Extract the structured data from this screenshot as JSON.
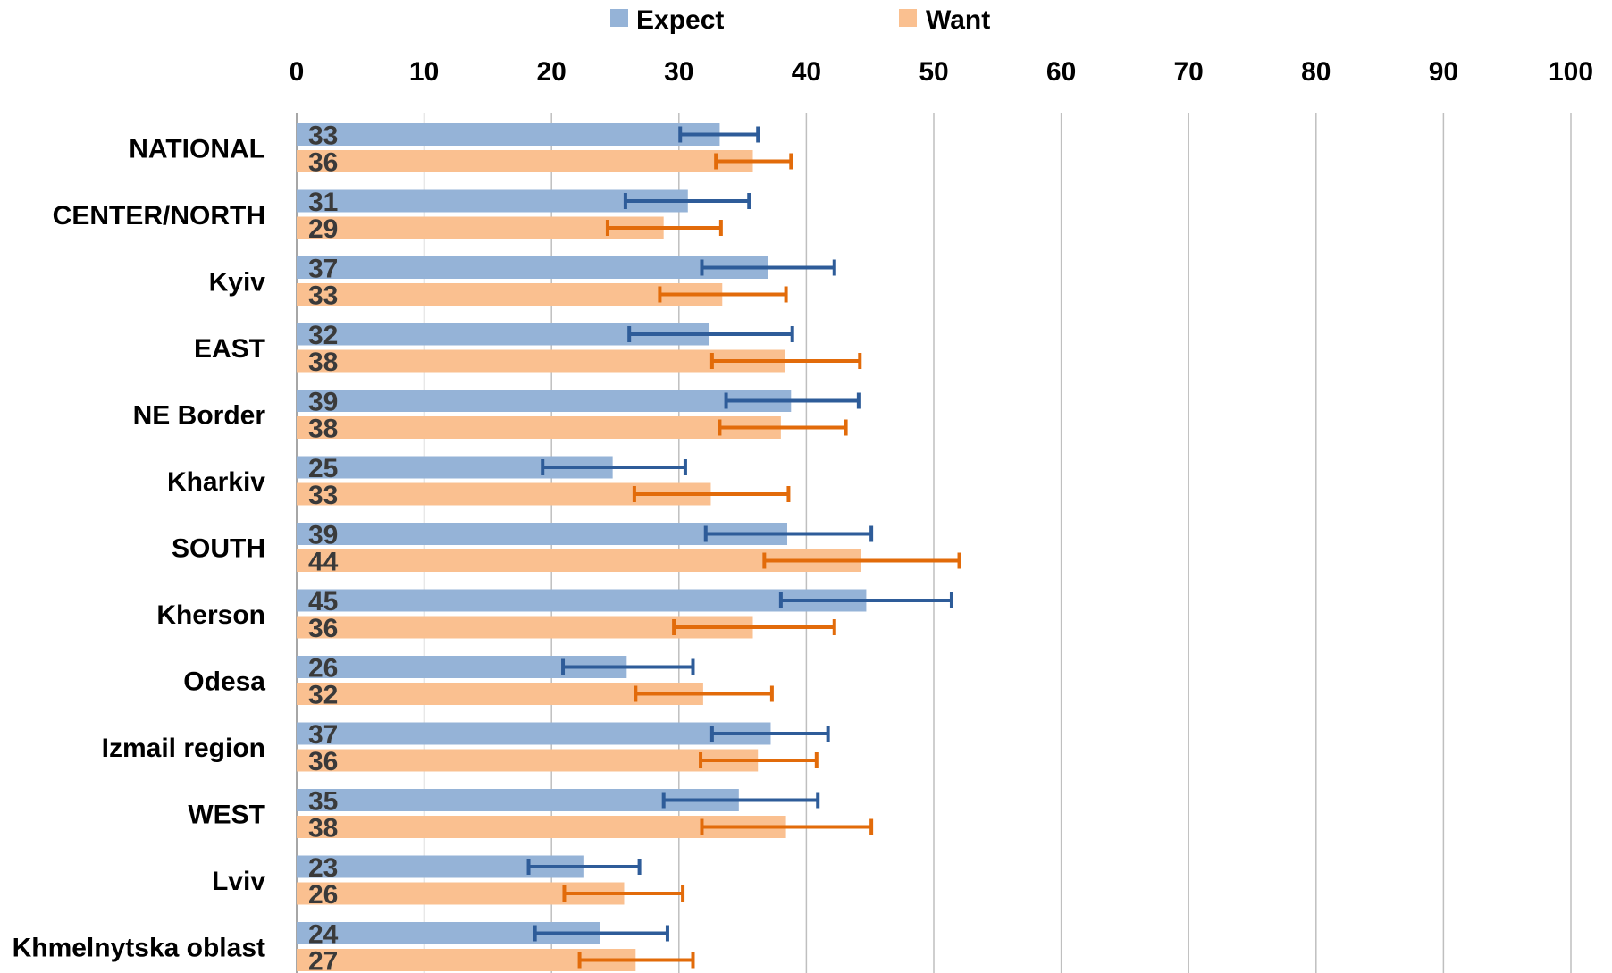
{
  "chart_data": {
    "type": "bar",
    "orientation": "horizontal",
    "categories": [
      "NATIONAL",
      "CENTER/NORTH",
      "Kyiv",
      "EAST",
      "NE Border",
      "Kharkiv",
      "SOUTH",
      "Kherson",
      "Odesa",
      "Izmail region",
      "WEST",
      "Lviv",
      "Khmelnytska oblast"
    ],
    "series": [
      {
        "name": "Expect",
        "color": "#95b3d7",
        "error_color": "#2e5c99",
        "values": [
          33,
          31,
          37,
          32,
          39,
          25,
          39,
          45,
          26,
          37,
          35,
          23,
          24
        ],
        "bar_values": [
          33.2,
          30.7,
          37.0,
          32.4,
          38.8,
          24.8,
          38.5,
          44.7,
          25.9,
          37.2,
          34.7,
          22.5,
          23.8
        ],
        "error_low": [
          30.1,
          25.8,
          31.8,
          26.1,
          33.7,
          19.3,
          32.1,
          38.0,
          20.9,
          32.6,
          28.8,
          18.2,
          18.7
        ],
        "error_high": [
          36.2,
          35.5,
          42.2,
          38.9,
          44.1,
          30.5,
          45.1,
          51.4,
          31.1,
          41.7,
          40.9,
          26.9,
          29.1
        ]
      },
      {
        "name": "Want",
        "color": "#fac090",
        "error_color": "#e26b0a",
        "values": [
          36,
          29,
          33,
          38,
          38,
          33,
          44,
          36,
          32,
          36,
          38,
          26,
          27
        ],
        "bar_values": [
          35.8,
          28.8,
          33.4,
          38.3,
          38.0,
          32.5,
          44.3,
          35.8,
          31.9,
          36.2,
          38.4,
          25.7,
          26.6
        ],
        "error_low": [
          32.9,
          24.4,
          28.5,
          32.6,
          33.2,
          26.5,
          36.7,
          29.6,
          26.6,
          31.7,
          31.8,
          21.0,
          22.2
        ],
        "error_high": [
          38.8,
          33.3,
          38.4,
          44.2,
          43.1,
          38.6,
          52.0,
          42.2,
          37.3,
          40.8,
          45.1,
          30.3,
          31.1
        ]
      }
    ],
    "xlim": [
      0,
      100
    ],
    "x_ticks": [
      "0",
      "10",
      "20",
      "30",
      "40",
      "50",
      "60",
      "70",
      "80",
      "90",
      "100"
    ],
    "x_axis_position": "top",
    "grid": true,
    "legend": {
      "position": "top-center",
      "entries": [
        "Expect",
        "Want"
      ]
    }
  }
}
